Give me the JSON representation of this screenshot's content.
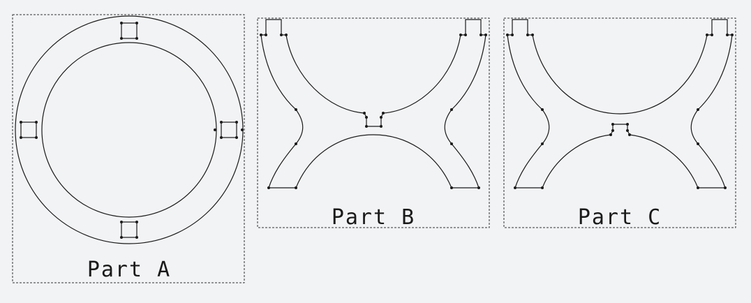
{
  "parts": [
    {
      "id": "part-a",
      "label": "Part A"
    },
    {
      "id": "part-b",
      "label": "Part B"
    },
    {
      "id": "part-c",
      "label": "Part C"
    }
  ]
}
